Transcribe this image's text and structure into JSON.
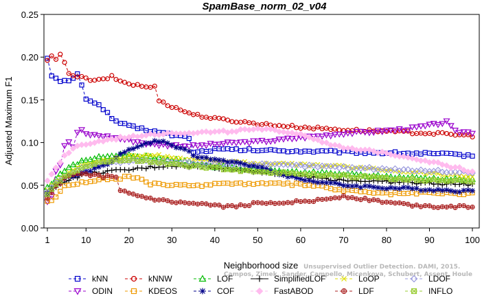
{
  "chart_data": {
    "type": "line",
    "title": "SpamBase_norm_02_v04",
    "xlabel": "Neighborhood size",
    "ylabel": "Adjusted Maximum F1",
    "xlim": [
      1,
      100
    ],
    "ylim": [
      0,
      0.25
    ],
    "x_ticks": [
      "1",
      "10",
      "20",
      "30",
      "40",
      "50",
      "60",
      "70",
      "80",
      "90",
      "100"
    ],
    "y_ticks": [
      "0.00",
      "0.05",
      "0.10",
      "0.15",
      "0.20",
      "0.25"
    ],
    "grid": false,
    "legend_position": "bottom",
    "watermark": [
      "Campos, Zimek, Sander, Campello, Micenkova, Schubert, Assent, Houle",
      "Unsupervised Outlier Detection. DAMI, 2015."
    ],
    "series": [
      {
        "name": "kNN",
        "color": "#0000cc",
        "marker": "square",
        "dash": "dash",
        "anchors": [
          [
            1,
            0.2
          ],
          [
            2,
            0.178
          ],
          [
            4,
            0.171
          ],
          [
            6,
            0.172
          ],
          [
            8,
            0.18
          ],
          [
            10,
            0.152
          ],
          [
            12,
            0.147
          ],
          [
            14,
            0.14
          ],
          [
            16,
            0.128
          ],
          [
            18,
            0.123
          ],
          [
            20,
            0.119
          ],
          [
            25,
            0.114
          ],
          [
            30,
            0.109
          ],
          [
            34,
            0.106
          ],
          [
            35,
            0.088
          ],
          [
            40,
            0.092
          ],
          [
            50,
            0.091
          ],
          [
            60,
            0.09
          ],
          [
            70,
            0.089
          ],
          [
            80,
            0.088
          ],
          [
            90,
            0.087
          ],
          [
            100,
            0.085
          ]
        ]
      },
      {
        "name": "kNNW",
        "color": "#cc0000",
        "marker": "circle",
        "dash": "dash",
        "anchors": [
          [
            1,
            0.195
          ],
          [
            2,
            0.202
          ],
          [
            3,
            0.196
          ],
          [
            4,
            0.203
          ],
          [
            6,
            0.182
          ],
          [
            8,
            0.177
          ],
          [
            10,
            0.175
          ],
          [
            12,
            0.172
          ],
          [
            14,
            0.174
          ],
          [
            16,
            0.177
          ],
          [
            18,
            0.172
          ],
          [
            20,
            0.169
          ],
          [
            24,
            0.165
          ],
          [
            26,
            0.165
          ],
          [
            27,
            0.15
          ],
          [
            30,
            0.142
          ],
          [
            35,
            0.133
          ],
          [
            40,
            0.128
          ],
          [
            50,
            0.122
          ],
          [
            60,
            0.118
          ],
          [
            70,
            0.115
          ],
          [
            80,
            0.113
          ],
          [
            90,
            0.111
          ],
          [
            100,
            0.108
          ]
        ]
      },
      {
        "name": "LOF",
        "color": "#00bb00",
        "marker": "triangle-up",
        "dash": "dash",
        "anchors": [
          [
            1,
            0.047
          ],
          [
            3,
            0.058
          ],
          [
            5,
            0.068
          ],
          [
            8,
            0.075
          ],
          [
            10,
            0.08
          ],
          [
            14,
            0.083
          ],
          [
            18,
            0.086
          ],
          [
            22,
            0.084
          ],
          [
            26,
            0.083
          ],
          [
            30,
            0.08
          ],
          [
            35,
            0.076
          ],
          [
            40,
            0.072
          ],
          [
            50,
            0.068
          ],
          [
            60,
            0.065
          ],
          [
            70,
            0.063
          ],
          [
            80,
            0.06
          ],
          [
            90,
            0.058
          ],
          [
            100,
            0.056
          ]
        ]
      },
      {
        "name": "SimplifiedLOF",
        "color": "#000000",
        "marker": "plus",
        "dash": "solid",
        "anchors": [
          [
            1,
            0.037
          ],
          [
            3,
            0.048
          ],
          [
            5,
            0.055
          ],
          [
            8,
            0.06
          ],
          [
            10,
            0.063
          ],
          [
            15,
            0.066
          ],
          [
            20,
            0.068
          ],
          [
            25,
            0.071
          ],
          [
            30,
            0.073
          ],
          [
            35,
            0.072
          ],
          [
            40,
            0.071
          ],
          [
            50,
            0.066
          ],
          [
            55,
            0.064
          ],
          [
            60,
            0.06
          ],
          [
            70,
            0.056
          ],
          [
            80,
            0.054
          ],
          [
            90,
            0.052
          ],
          [
            100,
            0.051
          ]
        ]
      },
      {
        "name": "LoOP",
        "color": "#dddd00",
        "marker": "x",
        "dash": "dash",
        "anchors": [
          [
            1,
            0.045
          ],
          [
            3,
            0.055
          ],
          [
            5,
            0.062
          ],
          [
            8,
            0.07
          ],
          [
            10,
            0.075
          ],
          [
            15,
            0.08
          ],
          [
            20,
            0.084
          ],
          [
            25,
            0.086
          ],
          [
            30,
            0.083
          ],
          [
            35,
            0.08
          ],
          [
            40,
            0.078
          ],
          [
            50,
            0.076
          ],
          [
            60,
            0.074
          ],
          [
            70,
            0.072
          ],
          [
            80,
            0.068
          ],
          [
            90,
            0.064
          ],
          [
            100,
            0.06
          ]
        ]
      },
      {
        "name": "LDOF",
        "color": "#9999dd",
        "marker": "diamond",
        "dash": "dash",
        "anchors": [
          [
            1,
            0.043
          ],
          [
            3,
            0.052
          ],
          [
            5,
            0.06
          ],
          [
            8,
            0.067
          ],
          [
            10,
            0.072
          ],
          [
            15,
            0.076
          ],
          [
            20,
            0.078
          ],
          [
            30,
            0.077
          ],
          [
            40,
            0.075
          ],
          [
            50,
            0.074
          ],
          [
            60,
            0.073
          ],
          [
            70,
            0.071
          ],
          [
            80,
            0.069
          ],
          [
            90,
            0.067
          ],
          [
            100,
            0.065
          ]
        ]
      },
      {
        "name": "ODIN",
        "color": "#9900cc",
        "marker": "triangle-down",
        "dash": "dash",
        "anchors": [
          [
            1,
            0.032
          ],
          [
            2,
            0.038
          ],
          [
            3,
            0.068
          ],
          [
            4,
            0.074
          ],
          [
            5,
            0.097
          ],
          [
            6,
            0.1
          ],
          [
            7,
            0.095
          ],
          [
            8,
            0.112
          ],
          [
            9,
            0.114
          ],
          [
            10,
            0.11
          ],
          [
            15,
            0.107
          ],
          [
            20,
            0.103
          ],
          [
            25,
            0.098
          ],
          [
            30,
            0.097
          ],
          [
            35,
            0.096
          ],
          [
            40,
            0.098
          ],
          [
            45,
            0.1
          ],
          [
            50,
            0.101
          ],
          [
            55,
            0.103
          ],
          [
            60,
            0.106
          ],
          [
            65,
            0.108
          ],
          [
            70,
            0.111
          ],
          [
            75,
            0.112
          ],
          [
            80,
            0.114
          ],
          [
            85,
            0.116
          ],
          [
            90,
            0.12
          ],
          [
            94,
            0.124
          ],
          [
            96,
            0.113
          ],
          [
            100,
            0.112
          ]
        ]
      },
      {
        "name": "KDEOS",
        "color": "#ee9900",
        "marker": "square",
        "dash": "dash",
        "anchors": [
          [
            1,
            0.03
          ],
          [
            3,
            0.037
          ],
          [
            5,
            0.05
          ],
          [
            8,
            0.052
          ],
          [
            10,
            0.054
          ],
          [
            15,
            0.058
          ],
          [
            18,
            0.057
          ],
          [
            20,
            0.061
          ],
          [
            25,
            0.052
          ],
          [
            30,
            0.05
          ],
          [
            35,
            0.049
          ],
          [
            40,
            0.052
          ],
          [
            50,
            0.052
          ],
          [
            60,
            0.051
          ],
          [
            65,
            0.048
          ],
          [
            70,
            0.044
          ],
          [
            80,
            0.04
          ],
          [
            90,
            0.041
          ],
          [
            100,
            0.04
          ]
        ]
      },
      {
        "name": "COF",
        "color": "#000088",
        "marker": "asterisk",
        "dash": "dash",
        "anchors": [
          [
            1,
            0.04
          ],
          [
            3,
            0.05
          ],
          [
            5,
            0.058
          ],
          [
            8,
            0.063
          ],
          [
            10,
            0.065
          ],
          [
            15,
            0.075
          ],
          [
            18,
            0.086
          ],
          [
            20,
            0.091
          ],
          [
            22,
            0.095
          ],
          [
            25,
            0.1
          ],
          [
            28,
            0.102
          ],
          [
            30,
            0.097
          ],
          [
            33,
            0.092
          ],
          [
            35,
            0.085
          ],
          [
            40,
            0.08
          ],
          [
            50,
            0.072
          ],
          [
            55,
            0.064
          ],
          [
            60,
            0.057
          ],
          [
            70,
            0.05
          ],
          [
            80,
            0.047
          ],
          [
            90,
            0.045
          ],
          [
            100,
            0.043
          ]
        ]
      },
      {
        "name": "FastABOD",
        "color": "#ffbbee",
        "marker": "diamond-filled",
        "dash": "dash",
        "anchors": [
          [
            1,
            0.055
          ],
          [
            3,
            0.07
          ],
          [
            5,
            0.085
          ],
          [
            8,
            0.095
          ],
          [
            10,
            0.098
          ],
          [
            15,
            0.103
          ],
          [
            20,
            0.107
          ],
          [
            25,
            0.11
          ],
          [
            30,
            0.111
          ],
          [
            35,
            0.112
          ],
          [
            40,
            0.112
          ],
          [
            45,
            0.114
          ],
          [
            50,
            0.115
          ],
          [
            55,
            0.114
          ],
          [
            60,
            0.11
          ],
          [
            70,
            0.093
          ],
          [
            80,
            0.088
          ],
          [
            90,
            0.078
          ],
          [
            100,
            0.066
          ]
        ]
      },
      {
        "name": "LDF",
        "color": "#aa2222",
        "marker": "circle-plus",
        "dash": "dash",
        "anchors": [
          [
            1,
            0.035
          ],
          [
            3,
            0.048
          ],
          [
            5,
            0.058
          ],
          [
            8,
            0.063
          ],
          [
            10,
            0.062
          ],
          [
            15,
            0.06
          ],
          [
            17,
            0.058
          ],
          [
            18,
            0.045
          ],
          [
            20,
            0.04
          ],
          [
            25,
            0.034
          ],
          [
            30,
            0.03
          ],
          [
            35,
            0.028
          ],
          [
            40,
            0.026
          ],
          [
            45,
            0.025
          ],
          [
            50,
            0.029
          ],
          [
            55,
            0.03
          ],
          [
            60,
            0.031
          ],
          [
            65,
            0.033
          ],
          [
            70,
            0.037
          ],
          [
            80,
            0.03
          ],
          [
            85,
            0.027
          ],
          [
            90,
            0.025
          ],
          [
            100,
            0.025
          ]
        ]
      },
      {
        "name": "INFLO",
        "color": "#99cc33",
        "marker": "square-x",
        "dash": "dash",
        "anchors": [
          [
            1,
            0.04
          ],
          [
            3,
            0.052
          ],
          [
            5,
            0.06
          ],
          [
            8,
            0.067
          ],
          [
            10,
            0.072
          ],
          [
            15,
            0.078
          ],
          [
            20,
            0.08
          ],
          [
            25,
            0.078
          ],
          [
            30,
            0.075
          ],
          [
            40,
            0.07
          ],
          [
            50,
            0.066
          ],
          [
            60,
            0.063
          ],
          [
            70,
            0.061
          ],
          [
            80,
            0.058
          ],
          [
            90,
            0.056
          ],
          [
            100,
            0.055
          ]
        ]
      }
    ]
  }
}
